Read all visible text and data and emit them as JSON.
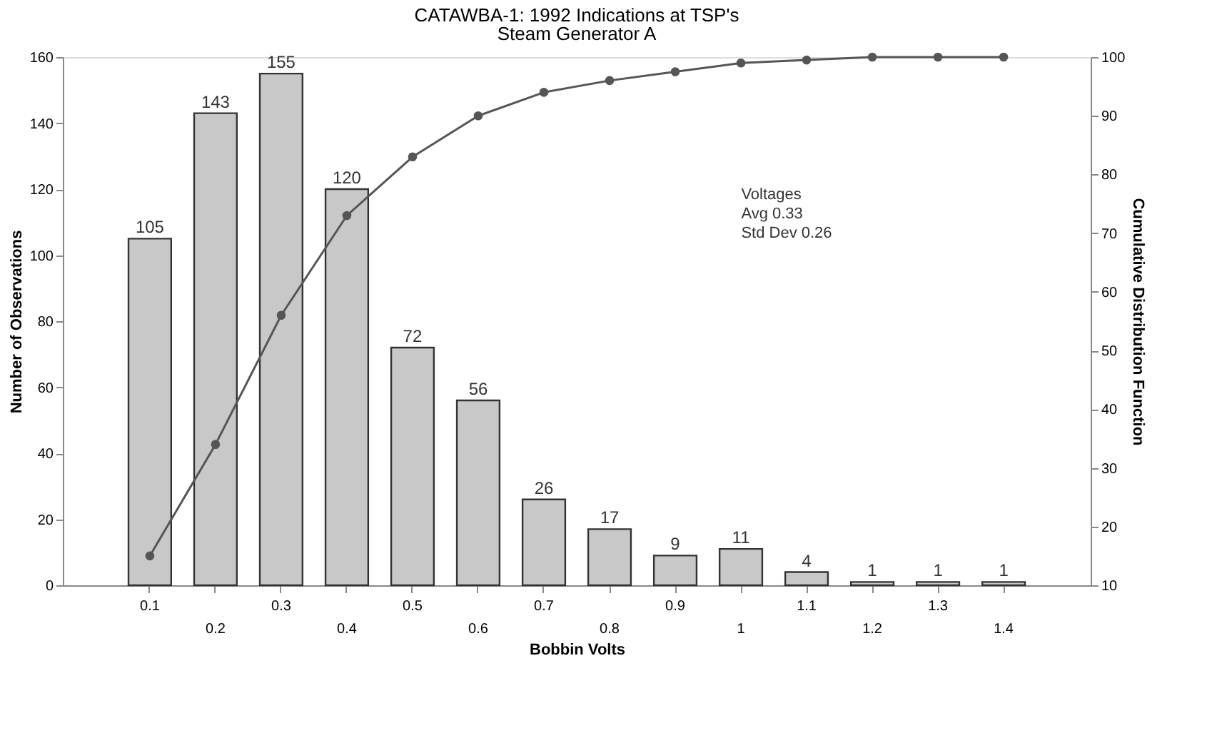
{
  "chart_data": {
    "type": "bar",
    "title": "CATAWBA-1: 1992 Indications at TSP's",
    "subtitle": "Steam Generator A",
    "xlabel": "Bobbin Volts",
    "ylabel": "Number of Observations",
    "y2label": "Cumulative Distribution Function",
    "categories": [
      "0.1",
      "0.2",
      "0.3",
      "0.4",
      "0.5",
      "0.6",
      "0.7",
      "0.8",
      "0.9",
      "1",
      "1.1",
      "1.2",
      "1.3",
      "1.4"
    ],
    "series": [
      {
        "color": "#c8c8c8",
        "values": [
          105,
          143,
          155,
          120,
          72,
          56,
          26,
          17,
          9,
          11,
          4,
          1,
          1,
          1
        ],
        "value_labels": [
          "105",
          "143",
          "155",
          "120",
          "72",
          "56",
          "26",
          "17",
          "9",
          "11",
          "4",
          "1",
          "1",
          "1"
        ]
      },
      {
        "type": "line",
        "axis": "y2",
        "color": "#555555",
        "marker": "circle",
        "values": [
          15,
          34,
          56,
          73,
          83,
          90,
          94,
          96,
          97.5,
          99,
          99.5,
          100,
          100,
          100
        ]
      }
    ],
    "ylim": [
      0,
      160
    ],
    "yticks": [
      0,
      20,
      40,
      60,
      80,
      100,
      120,
      140,
      160
    ],
    "y2lim": [
      10,
      100
    ],
    "y2ticks": [
      10,
      20,
      30,
      40,
      50,
      60,
      70,
      80,
      90,
      100
    ],
    "annotations": [
      "Voltages",
      "Avg 0.33",
      "Std Dev 0.26"
    ],
    "grid": false
  }
}
